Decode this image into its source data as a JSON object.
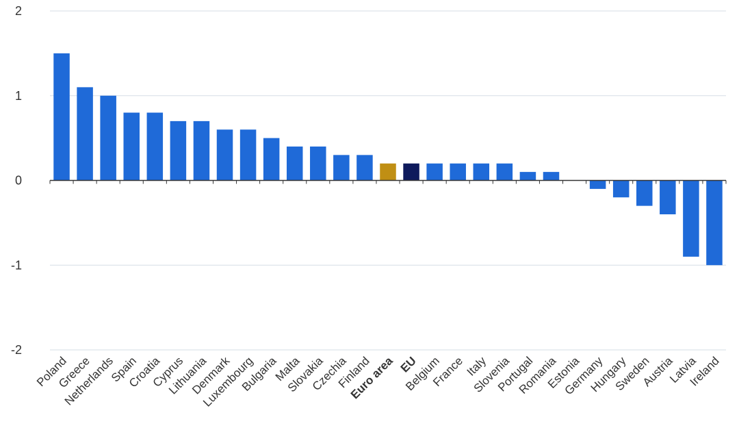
{
  "chart_data": {
    "type": "bar",
    "title": "",
    "xlabel": "",
    "ylabel": "",
    "ylim": [
      -2,
      2
    ],
    "yticks": [
      -2,
      -1,
      0,
      1,
      2
    ],
    "grid": true,
    "colors": {
      "default": "#1f6ad8",
      "Euro area": "#c08f14",
      "EU": "#0e1a5c"
    },
    "bold_categories": [
      "Euro area",
      "EU"
    ],
    "categories": [
      "Poland",
      "Greece",
      "Netherlands",
      "Spain",
      "Croatia",
      "Cyprus",
      "Lithuania",
      "Denmark",
      "Luxembourg",
      "Bulgaria",
      "Malta",
      "Slovakia",
      "Czechia",
      "Finland",
      "Euro area",
      "EU",
      "Belgium",
      "France",
      "Italy",
      "Slovenia",
      "Portugal",
      "Romania",
      "Estonia",
      "Germany",
      "Hungary",
      "Sweden",
      "Austria",
      "Latvia",
      "Ireland"
    ],
    "values": [
      1.5,
      1.1,
      1.0,
      0.8,
      0.8,
      0.7,
      0.7,
      0.6,
      0.6,
      0.5,
      0.4,
      0.4,
      0.3,
      0.3,
      0.2,
      0.2,
      0.2,
      0.2,
      0.2,
      0.2,
      0.1,
      0.1,
      0.0,
      -0.1,
      -0.2,
      -0.3,
      -0.4,
      -0.9,
      -1.0
    ]
  }
}
